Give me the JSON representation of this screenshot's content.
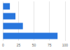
{
  "chart_data": {
    "type": "bar",
    "orientation": "horizontal",
    "categories": [
      null,
      null,
      null,
      null
    ],
    "values": [
      11,
      20,
      32,
      88
    ],
    "color": "#2876dd",
    "xlim": [
      0,
      100
    ],
    "xticks": [
      0,
      25,
      50,
      75,
      100
    ],
    "grid": true,
    "tick_labels": "x"
  }
}
